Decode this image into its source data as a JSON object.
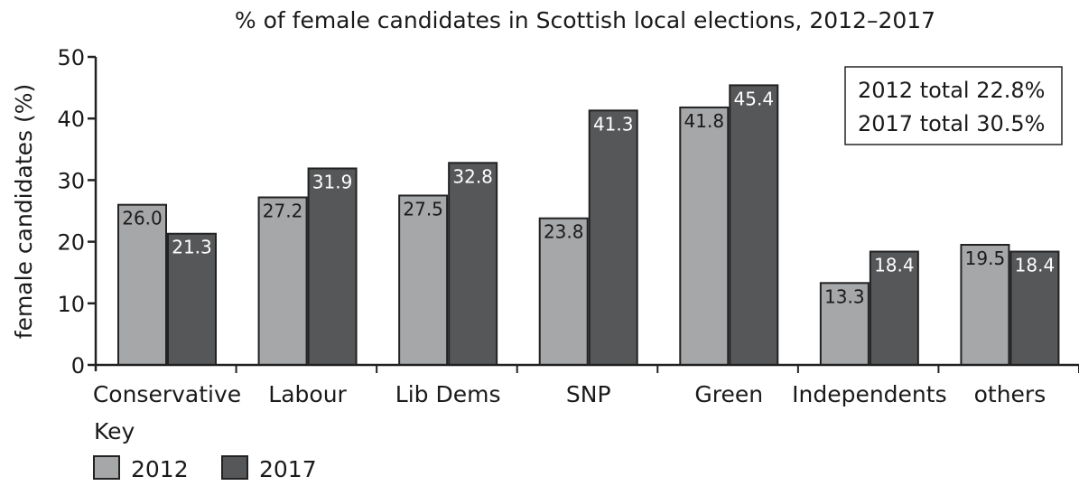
{
  "chart_data": {
    "type": "bar",
    "title": "% of female candidates in Scottish local elections, 2012–2017",
    "ylabel": "female candidates (%)",
    "xlabel": "",
    "ylim": [
      0,
      50
    ],
    "yticks": [
      0,
      10,
      20,
      30,
      40,
      50
    ],
    "categories": [
      "Conservative",
      "Labour",
      "Lib Dems",
      "SNP",
      "Green",
      "Independents",
      "others"
    ],
    "series": [
      {
        "name": "2012",
        "color": "#a6a7a9",
        "values": [
          26.0,
          27.2,
          27.5,
          23.8,
          41.8,
          13.3,
          19.5
        ],
        "labels": [
          "26.0",
          "27.2",
          "27.5",
          "23.8",
          "41.8",
          "13.3",
          "19.5"
        ]
      },
      {
        "name": "2017",
        "color": "#555759",
        "values": [
          21.3,
          31.9,
          32.8,
          41.3,
          45.4,
          18.4,
          18.4
        ],
        "labels": [
          "21.3",
          "31.9",
          "32.8",
          "41.3",
          "45.4",
          "18.4",
          "18.4"
        ]
      }
    ],
    "legend_title": "Key",
    "legend_position": "bottom-left",
    "annotation_lines": [
      "2012 total 22.8%",
      "2017 total 30.5%"
    ],
    "grid": false
  }
}
